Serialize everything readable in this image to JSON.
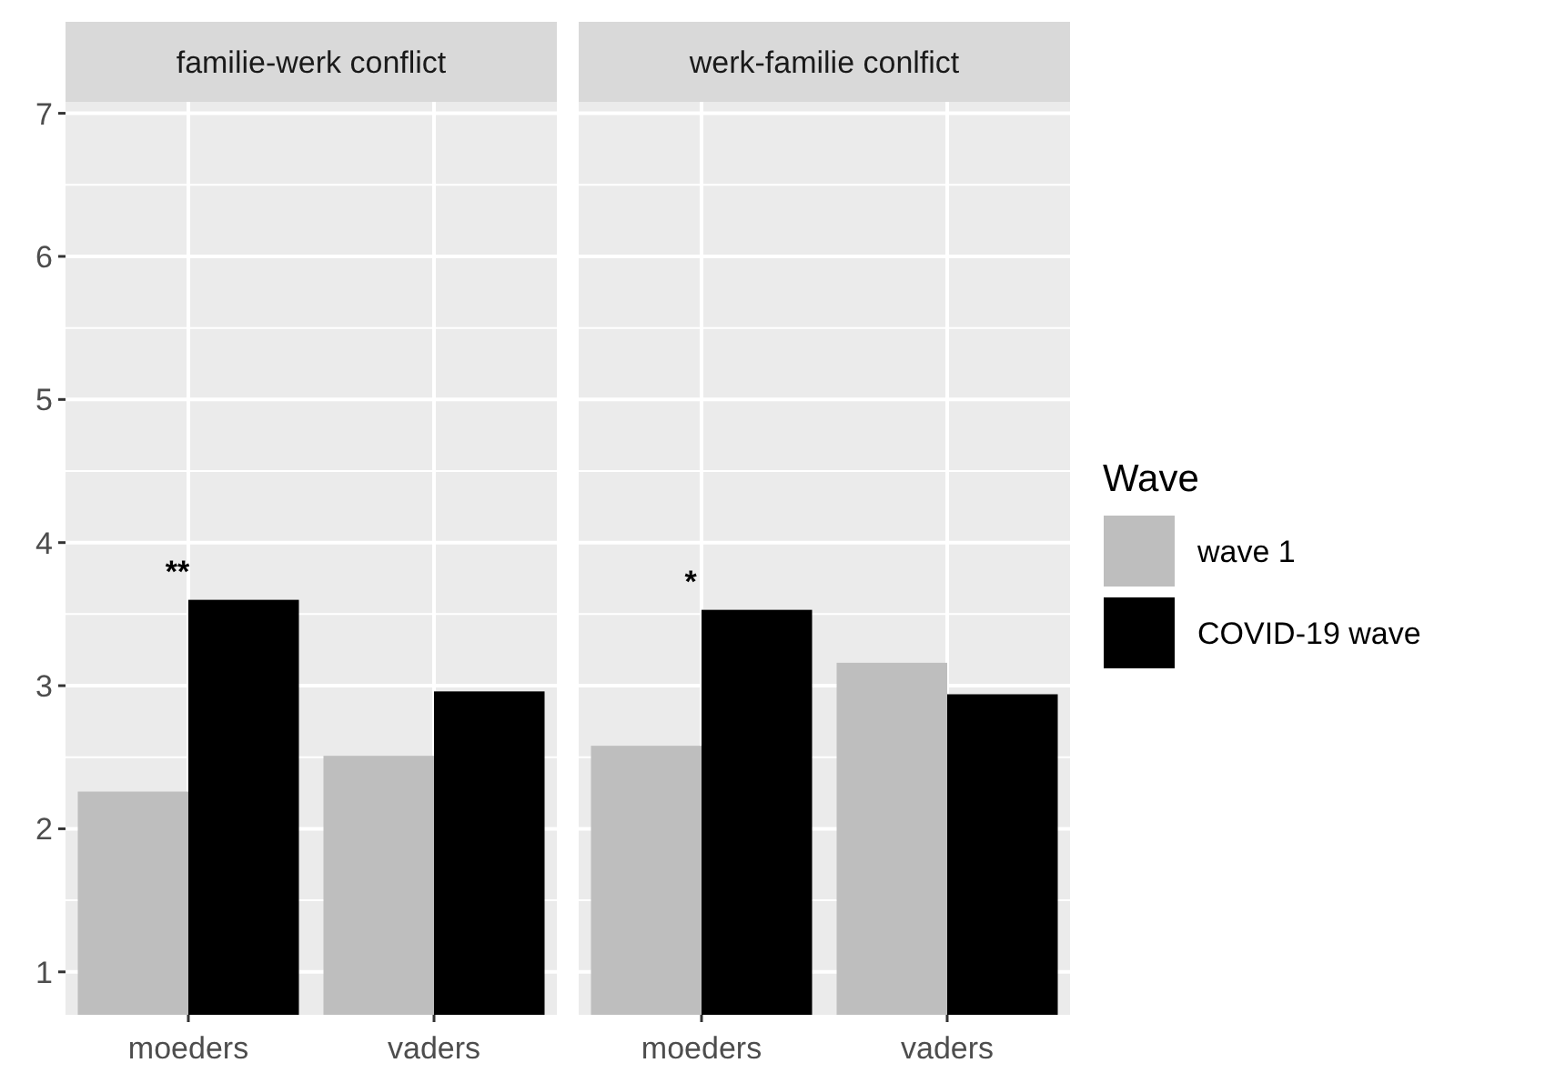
{
  "chart_data": [
    {
      "type": "bar",
      "title": "familie-werk conflict",
      "categories": [
        "moeders",
        "vaders"
      ],
      "series": [
        {
          "color": "#bebebe",
          "values": [
            2.26,
            2.51
          ]
        },
        {
          "color": "#000000",
          "values": [
            3.6,
            2.96
          ]
        }
      ],
      "ylim": [
        0.7,
        7.08
      ],
      "yticks": [
        1,
        2,
        3,
        4,
        5,
        6,
        7
      ],
      "grid": true,
      "legend": false,
      "annotations": [
        "**"
      ]
    },
    {
      "type": "bar",
      "title": "werk-familie conlfict",
      "categories": [
        "moeders",
        "vaders"
      ],
      "series": [
        {
          "name": "wave 1",
          "color": "#bebebe",
          "values": [
            2.58,
            3.16
          ]
        },
        {
          "name": "COVID-19 wave",
          "color": "#000000",
          "values": [
            3.53,
            2.94
          ]
        }
      ],
      "ylim": [
        0.7,
        7.08
      ],
      "yticks": [
        1,
        2,
        3,
        4,
        5,
        6,
        7
      ],
      "grid": true,
      "tick_labels": "x",
      "legend": "right",
      "legend_title": "Wave",
      "annotations": [
        "*"
      ]
    }
  ]
}
